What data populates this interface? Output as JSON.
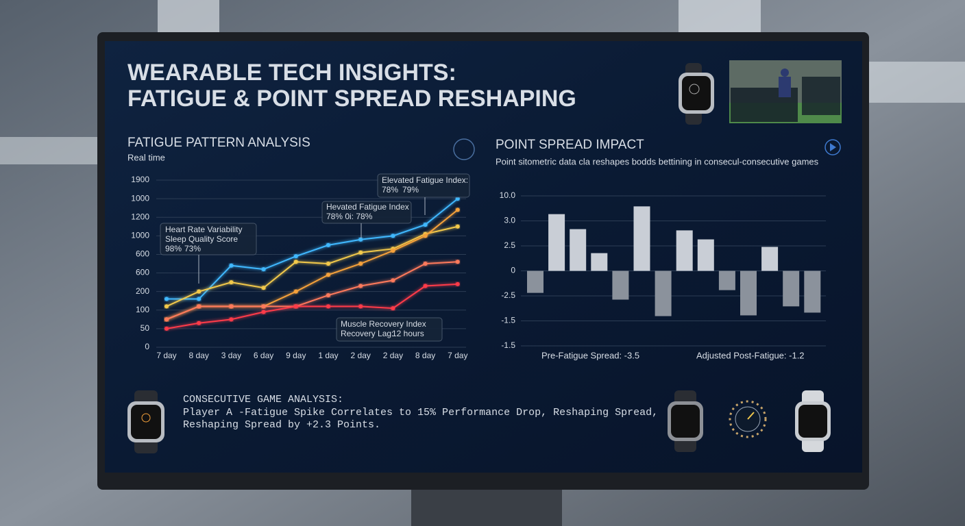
{
  "header": {
    "title": "WEARABLE TECH INSIGHTS:",
    "subtitle": "FATIGUE & POINT SPREAD RESHAPING"
  },
  "chart_data": [
    {
      "type": "line",
      "title": "FATIGUE PATTERN ANALYSIS",
      "subtitle": "Real time",
      "categories": [
        "7 day",
        "8 day",
        "3 day",
        "6 day",
        "9 day",
        "1 day",
        "2 day",
        "2 day",
        "8 day",
        "7 day"
      ],
      "series": [
        {
          "name": "Heart Rate Variability",
          "color": "#3fb8ff",
          "values": [
            2.6,
            2.6,
            4.4,
            4.2,
            4.9,
            5.5,
            5.8,
            6.0,
            6.6,
            8.0
          ]
        },
        {
          "name": "Sleep Quality Score",
          "color": "#f2c94c",
          "values": [
            2.2,
            3.0,
            3.5,
            3.2,
            4.6,
            4.5,
            5.1,
            5.3,
            6.1,
            6.5
          ]
        },
        {
          "name": "Elevated Fatigue Index",
          "color": "#f5a13a",
          "values": [
            1.5,
            2.2,
            2.2,
            2.2,
            3.0,
            3.9,
            4.5,
            5.2,
            6.0,
            7.4
          ]
        },
        {
          "name": "Muscle Recovery Index",
          "color": "#ff7a5c",
          "values": [
            1.5,
            2.2,
            2.2,
            2.2,
            2.2,
            2.8,
            3.3,
            3.6,
            4.5,
            4.6
          ]
        },
        {
          "name": "Recovery Lag",
          "color": "#ff3b4a",
          "values": [
            1.0,
            1.3,
            1.5,
            1.9,
            2.2,
            2.2,
            2.2,
            2.1,
            3.3,
            3.4
          ]
        }
      ],
      "ylim": [
        0,
        9
      ],
      "yticks": [
        {
          "value": 0,
          "label": "0"
        },
        {
          "value": 1,
          "label": "50"
        },
        {
          "value": 2,
          "label": "100"
        },
        {
          "value": 3,
          "label": "200"
        },
        {
          "value": 4,
          "label": "600"
        },
        {
          "value": 5,
          "label": "600"
        },
        {
          "value": 6,
          "label": "1000"
        },
        {
          "value": 7,
          "label": "1200"
        },
        {
          "value": 8,
          "label": "1000"
        },
        {
          "value": 9,
          "label": "1900"
        }
      ],
      "grid": true,
      "annotations": [
        "Heart Rate Variability",
        "Sleep Quality Score",
        "98%",
        "73%",
        "Elevated Fatigue Index:",
        "78%",
        "79%",
        "Hevated Fatigue Index",
        "78% 0i: 78%",
        "Muscle Recovery Index",
        "Recovery Lag:",
        "12 hours"
      ]
    },
    {
      "type": "bar",
      "title": "POINT SPREAD IMPACT",
      "subtitle": "Point sitometric data cla reshapes bodds bettining in consecul-consecutive games",
      "categories": [
        null,
        null,
        null,
        null,
        null,
        null,
        null,
        null,
        null,
        null,
        null,
        null,
        null,
        null
      ],
      "values": [
        -0.88,
        2.27,
        1.67,
        0.71,
        -1.15,
        2.58,
        -1.81,
        1.62,
        1.26,
        -0.77,
        -1.78,
        0.96,
        -1.42,
        -1.67
      ],
      "color_positive": "#c9ced6",
      "color_negative": "#8b929c",
      "ylim": [
        -3,
        3
      ],
      "yticks": [
        {
          "value": 3,
          "label": "10.0"
        },
        {
          "value": 2,
          "label": "3.0"
        },
        {
          "value": 1,
          "label": "2.5"
        },
        0,
        {
          "value": -1,
          "label": "-2.5"
        },
        {
          "value": -2,
          "label": "-1.5"
        },
        {
          "value": -3,
          "label": "-1.5"
        }
      ],
      "grid": true,
      "annotations": [
        "Pre-Fatigue Spread: -3.5",
        "Adjusted Post-Fatigue: -1.2"
      ]
    }
  ],
  "footer": {
    "title": "CONSECUTIVE GAME ANALYSIS:",
    "lines": [
      "Player A -Fatigue Spike Correlates to 15% Performance Drop, Reshaping Spread,",
      "Reshaping Spread by +2.3 Points."
    ]
  }
}
